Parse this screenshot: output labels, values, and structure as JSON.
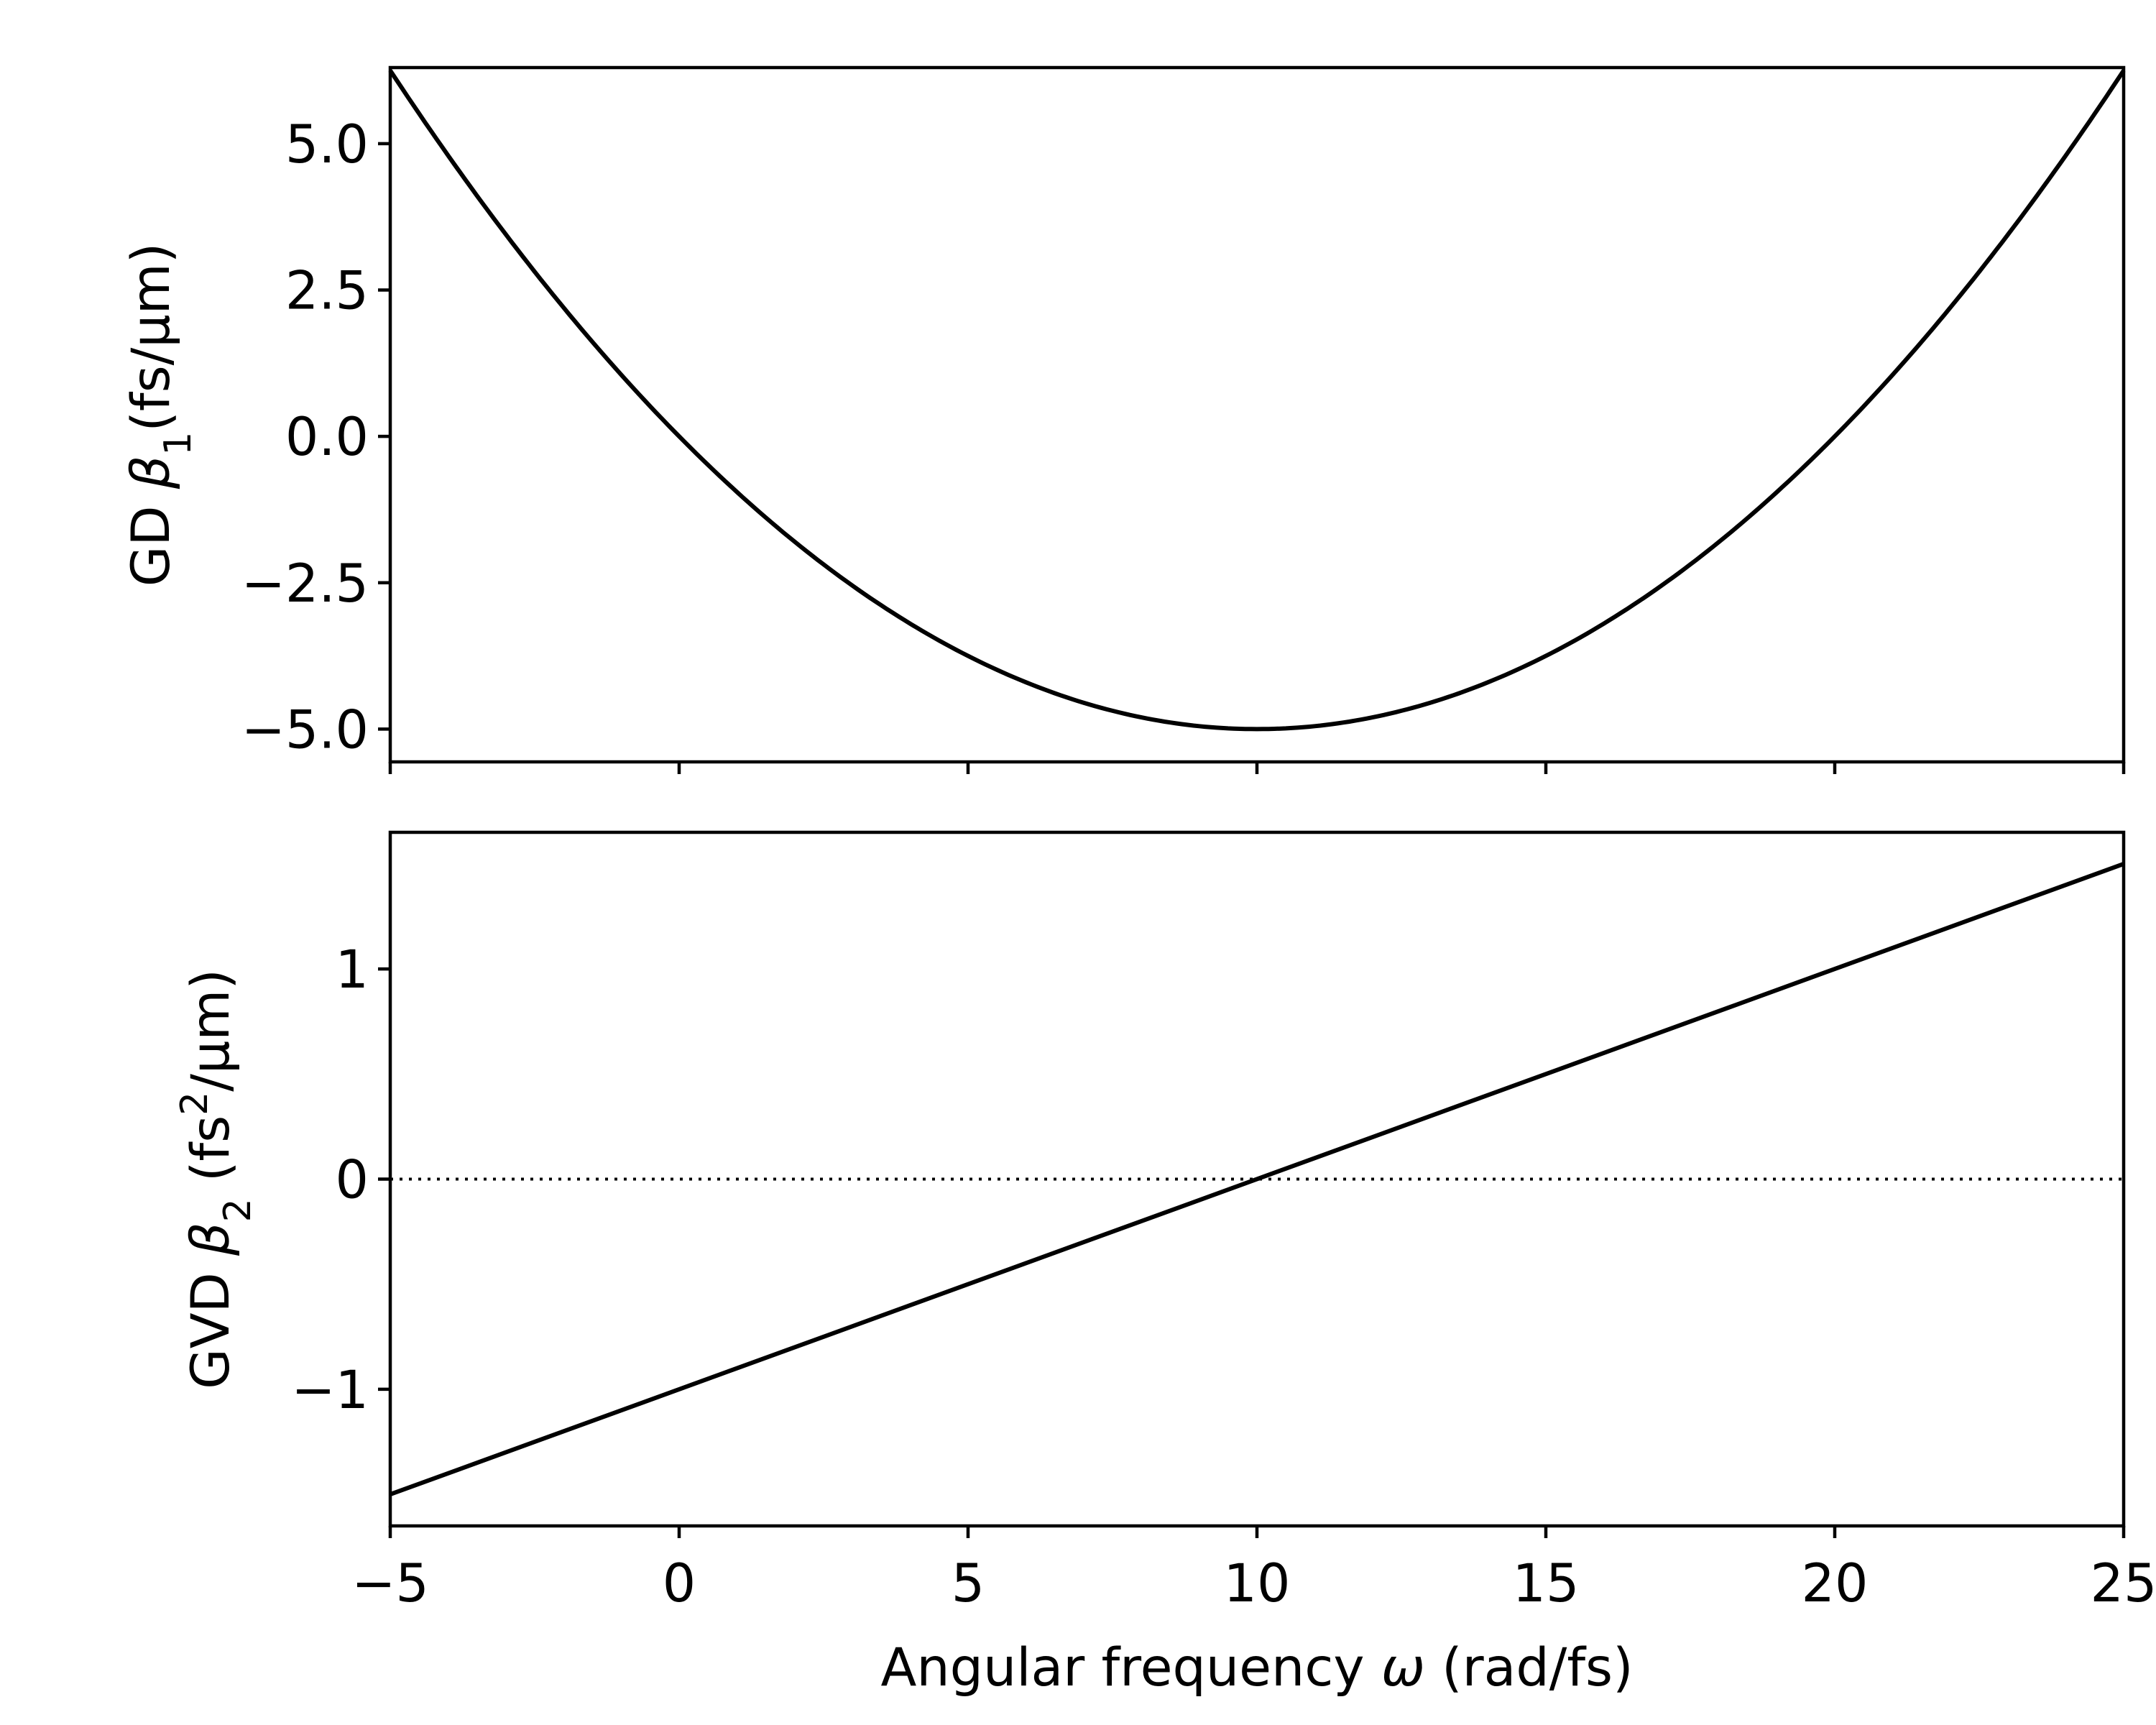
{
  "colors": {
    "line": "#000000",
    "background": "#ffffff",
    "zero_line": "#000000"
  },
  "chart_data": [
    {
      "type": "line",
      "panel": "top",
      "ylabel": {
        "prefix": "GD ",
        "symbol": "β",
        "sub": "1",
        "suffix": "(fs/μm)"
      },
      "xlim": [
        -5,
        25
      ],
      "ylim": [
        -5.56,
        6.3
      ],
      "grid": false,
      "x_ticks": [
        -5,
        0,
        5,
        10,
        15,
        20,
        25
      ],
      "x_tick_labels_shown": false,
      "y_ticks": [
        5.0,
        2.5,
        0.0,
        -2.5,
        -5.0
      ],
      "y_tick_labels": [
        "5.0",
        "2.5",
        "0.0",
        "−2.5",
        "−5.0"
      ],
      "series": [
        {
          "x": [
            -5,
            -2.5,
            0,
            2.5,
            5,
            7.5,
            10,
            12.5,
            15,
            17.5,
            20,
            22.5,
            25
          ],
          "y": [
            6.25,
            3.28,
            0.0,
            -1.88,
            -3.75,
            -4.69,
            -5.0,
            -4.69,
            -3.75,
            -1.88,
            0.0,
            3.28,
            6.25
          ]
        }
      ]
    },
    {
      "type": "line",
      "panel": "bottom",
      "xlabel": {
        "prefix": "Angular frequency ",
        "symbol": "ω",
        "suffix": " (rad/fs)"
      },
      "ylabel": {
        "prefix": "GVD ",
        "symbol": "β",
        "sub": "2",
        "mid": " (fs",
        "sup": "2",
        "suffix": "/μm)"
      },
      "xlim": [
        -5,
        25
      ],
      "ylim": [
        -1.65,
        1.65
      ],
      "grid": false,
      "x_ticks": [
        -5,
        0,
        5,
        10,
        15,
        20,
        25
      ],
      "x_tick_labels": [
        "−5",
        "0",
        "5",
        "10",
        "15",
        "20",
        "25"
      ],
      "y_ticks": [
        1,
        0,
        -1
      ],
      "y_tick_labels": [
        "1",
        "0",
        "−1"
      ],
      "reference_lines": [
        {
          "y": 0,
          "style": "dotted"
        }
      ],
      "series": [
        {
          "x": [
            -5,
            25
          ],
          "y": [
            -1.5,
            1.5
          ]
        }
      ]
    }
  ]
}
